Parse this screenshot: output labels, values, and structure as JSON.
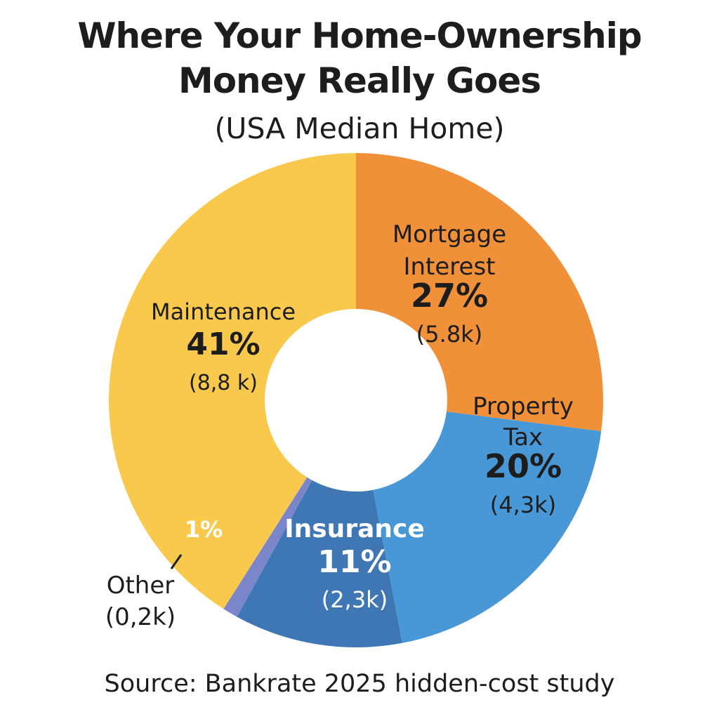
{
  "chart_data": {
    "type": "pie",
    "title_lines": [
      "Where Your Home-Ownership",
      "Money Really Goes"
    ],
    "subtitle": "(USA Median Home)",
    "source": "Source: Bankrate 2025 hidden-cost study",
    "slices": [
      {
        "name_lines": [
          "Mortgage",
          "Interest"
        ],
        "percent": 27,
        "percent_label": "27%",
        "amount_label": "(5.8k)",
        "color": "#f0913a",
        "text_color": "#1d1d1d"
      },
      {
        "name_lines": [
          "Property",
          "Tax"
        ],
        "percent": 20,
        "percent_label": "20%",
        "amount_label": "(4,3k)",
        "color": "#4897d6",
        "text_color": "#1d1d1d"
      },
      {
        "name_lines": [
          "Insurance"
        ],
        "percent": 11,
        "percent_label": "11%",
        "amount_label": "(2,3k)",
        "color": "#3f77b5",
        "text_color": "#ffffff"
      },
      {
        "name_lines": [
          "Other"
        ],
        "percent": 1,
        "percent_label": "1%",
        "amount_label": "(0,2k)",
        "color": "#7a86c9",
        "text_color": "#ffffff"
      },
      {
        "name_lines": [
          "Maintenance"
        ],
        "percent": 41,
        "percent_label": "41%",
        "amount_label": "(8,8 k)",
        "color": "#f9c94e",
        "text_color": "#1d1d1d"
      }
    ]
  }
}
